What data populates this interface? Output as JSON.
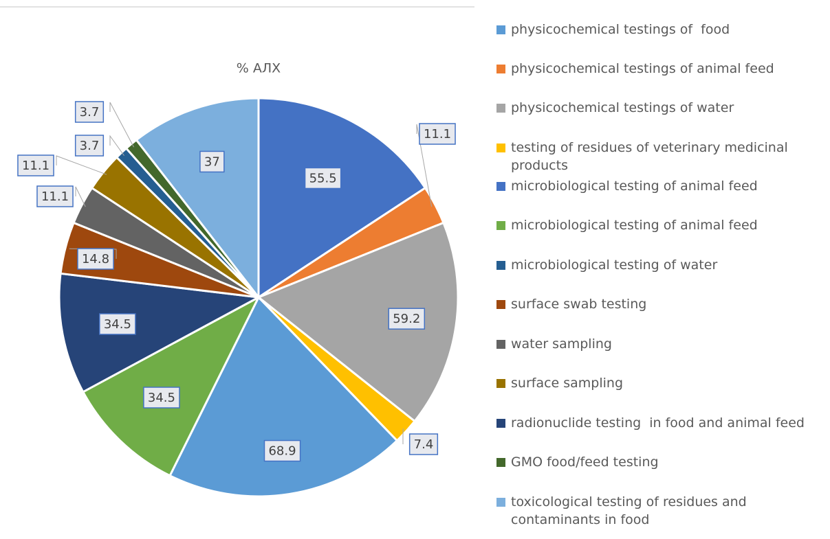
{
  "chart_data": {
    "type": "pie",
    "title": "% АЛХ",
    "categories": [
      "physicochemical testings of  food",
      "physicochemical testings of animal feed",
      "physicochemical testings of water",
      "testing of residues of veterinary medicinal products",
      "microbiological testing of animal feed",
      "microbiological testing of animal feed",
      "microbiological testing of water",
      "surface swab testing",
      "water sampling",
      "surface sampling",
      "radionuclide testing  in food and animal feed",
      "GMO food/feed testing",
      "toxicological testing of residues and contaminants in food"
    ],
    "values": [
      68.9,
      11.1,
      59.2,
      7.4,
      55.5,
      34.5,
      3.7,
      14.8,
      11.1,
      11.1,
      34.5,
      3.7,
      37
    ],
    "colors": [
      "#5b9bd5",
      "#ed7d31",
      "#a5a5a5",
      "#ffc000",
      "#4472c4",
      "#70ad47",
      "#255e91",
      "#9e480e",
      "#636363",
      "#997300",
      "#264478",
      "#43682b",
      "#7cafdd"
    ],
    "legend": "right"
  }
}
